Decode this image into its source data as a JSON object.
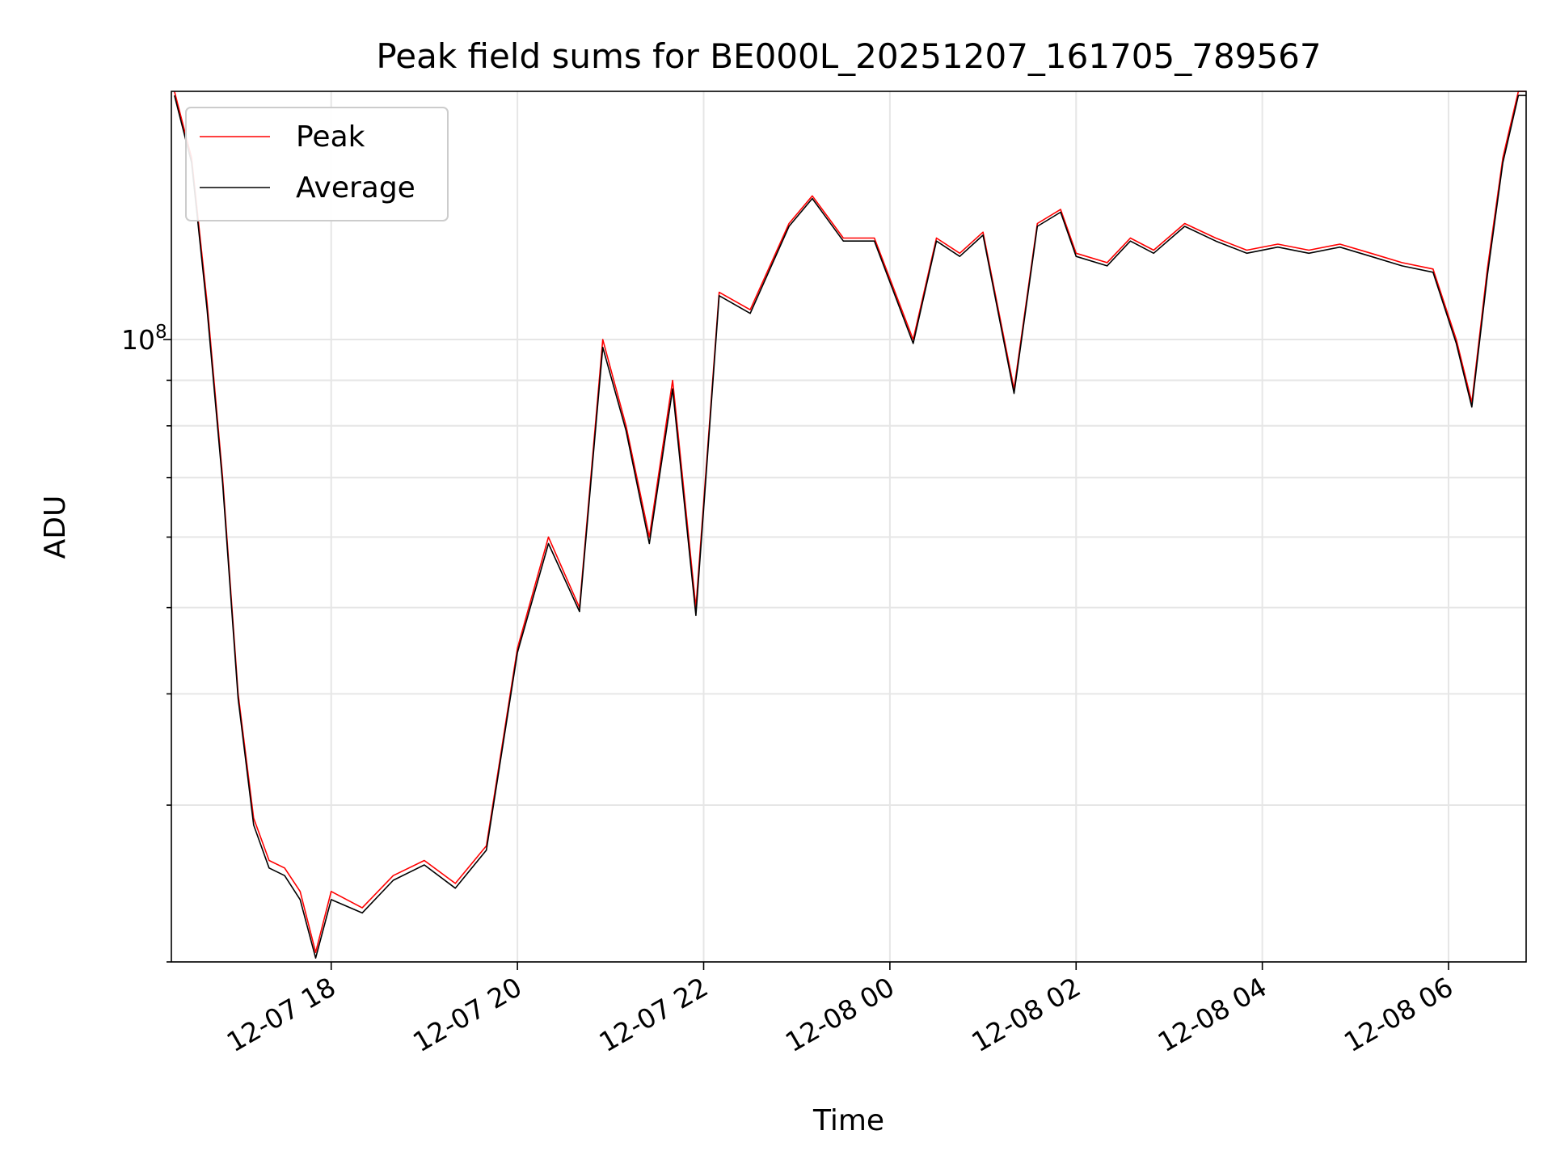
{
  "chart_data": {
    "type": "line",
    "title": "Peak field sums for BE000L_20251207_161705_789567",
    "xlabel": "Time",
    "ylabel": "ADU",
    "yscale": "log",
    "grid": true,
    "legend_position": "upper-left",
    "x_range": [
      "2025-12-07 16:17",
      "2025-12-08 06:50"
    ],
    "ylim": [
      20000000,
      190000000
    ],
    "x_ticks": [
      "12-07 18",
      "12-07 20",
      "12-07 22",
      "12-08 00",
      "12-08 02",
      "12-08 04",
      "12-08 06"
    ],
    "y_ticks": [
      {
        "value": 100000000,
        "base": "10",
        "exponent": "8"
      }
    ],
    "series": [
      {
        "name": "Peak",
        "color": "#ff0000",
        "x": [
          "2025-12-07 16:19",
          "2025-12-07 16:30",
          "2025-12-07 16:40",
          "2025-12-07 16:50",
          "2025-12-07 17:00",
          "2025-12-07 17:10",
          "2025-12-07 17:20",
          "2025-12-07 17:30",
          "2025-12-07 17:40",
          "2025-12-07 17:50",
          "2025-12-07 18:00",
          "2025-12-07 18:20",
          "2025-12-07 18:40",
          "2025-12-07 19:00",
          "2025-12-07 19:20",
          "2025-12-07 19:40",
          "2025-12-07 20:00",
          "2025-12-07 20:20",
          "2025-12-07 20:40",
          "2025-12-07 20:55",
          "2025-12-07 21:10",
          "2025-12-07 21:25",
          "2025-12-07 21:40",
          "2025-12-07 21:55",
          "2025-12-07 22:10",
          "2025-12-07 22:30",
          "2025-12-07 22:55",
          "2025-12-07 23:10",
          "2025-12-07 23:30",
          "2025-12-07 23:50",
          "2025-12-08 00:15",
          "2025-12-08 00:30",
          "2025-12-08 00:45",
          "2025-12-08 01:00",
          "2025-12-08 01:20",
          "2025-12-08 01:35",
          "2025-12-08 01:50",
          "2025-12-08 02:00",
          "2025-12-08 02:20",
          "2025-12-08 02:35",
          "2025-12-08 02:50",
          "2025-12-08 03:10",
          "2025-12-08 03:30",
          "2025-12-08 03:50",
          "2025-12-08 04:10",
          "2025-12-08 04:30",
          "2025-12-08 04:50",
          "2025-12-08 05:10",
          "2025-12-08 05:30",
          "2025-12-08 05:50",
          "2025-12-08 06:05",
          "2025-12-08 06:15",
          "2025-12-08 06:25",
          "2025-12-08 06:35",
          "2025-12-08 06:45",
          "2025-12-08 06:50"
        ],
        "y": [
          190000000,
          160000000,
          110000000,
          70000000,
          40000000,
          29000000,
          26000000,
          25500000,
          24000000,
          20500000,
          24000000,
          23000000,
          25000000,
          26000000,
          24500000,
          27000000,
          45000000,
          60000000,
          50000000,
          100000000,
          80000000,
          60000000,
          90000000,
          50000000,
          113000000,
          108000000,
          135000000,
          145000000,
          130000000,
          130000000,
          100000000,
          130000000,
          125000000,
          132000000,
          88000000,
          135000000,
          140000000,
          125000000,
          122000000,
          130000000,
          126000000,
          135000000,
          130000000,
          126000000,
          128000000,
          126000000,
          128000000,
          125000000,
          122000000,
          120000000,
          100000000,
          85000000,
          120000000,
          160000000,
          190000000,
          190000000
        ]
      },
      {
        "name": "Average",
        "color": "#000000",
        "x": [
          "2025-12-07 16:19",
          "2025-12-07 16:30",
          "2025-12-07 16:40",
          "2025-12-07 16:50",
          "2025-12-07 17:00",
          "2025-12-07 17:10",
          "2025-12-07 17:20",
          "2025-12-07 17:30",
          "2025-12-07 17:40",
          "2025-12-07 17:50",
          "2025-12-07 18:00",
          "2025-12-07 18:20",
          "2025-12-07 18:40",
          "2025-12-07 19:00",
          "2025-12-07 19:20",
          "2025-12-07 19:40",
          "2025-12-07 20:00",
          "2025-12-07 20:20",
          "2025-12-07 20:40",
          "2025-12-07 20:55",
          "2025-12-07 21:10",
          "2025-12-07 21:25",
          "2025-12-07 21:40",
          "2025-12-07 21:55",
          "2025-12-07 22:10",
          "2025-12-07 22:30",
          "2025-12-07 22:55",
          "2025-12-07 23:10",
          "2025-12-07 23:30",
          "2025-12-07 23:50",
          "2025-12-08 00:15",
          "2025-12-08 00:30",
          "2025-12-08 00:45",
          "2025-12-08 01:00",
          "2025-12-08 01:20",
          "2025-12-08 01:35",
          "2025-12-08 01:50",
          "2025-12-08 02:00",
          "2025-12-08 02:20",
          "2025-12-08 02:35",
          "2025-12-08 02:50",
          "2025-12-08 03:10",
          "2025-12-08 03:30",
          "2025-12-08 03:50",
          "2025-12-08 04:10",
          "2025-12-08 04:30",
          "2025-12-08 04:50",
          "2025-12-08 05:10",
          "2025-12-08 05:30",
          "2025-12-08 05:50",
          "2025-12-08 06:05",
          "2025-12-08 06:15",
          "2025-12-08 06:25",
          "2025-12-08 06:35",
          "2025-12-08 06:45",
          "2025-12-08 06:50"
        ],
        "y": [
          188000000,
          158000000,
          108000000,
          69000000,
          39500000,
          28500000,
          25500000,
          25000000,
          23500000,
          20200000,
          23500000,
          22700000,
          24700000,
          25700000,
          24200000,
          26700000,
          44500000,
          59000000,
          49500000,
          98000000,
          79000000,
          59000000,
          88000000,
          49000000,
          112000000,
          107000000,
          134000000,
          144000000,
          129000000,
          129000000,
          99000000,
          129000000,
          124000000,
          131000000,
          87000000,
          134000000,
          139000000,
          124000000,
          121000000,
          129000000,
          125000000,
          134000000,
          129000000,
          125000000,
          127000000,
          125000000,
          127000000,
          124000000,
          121000000,
          119000000,
          99000000,
          84000000,
          118000000,
          158000000,
          188000000,
          188000000
        ]
      }
    ]
  }
}
